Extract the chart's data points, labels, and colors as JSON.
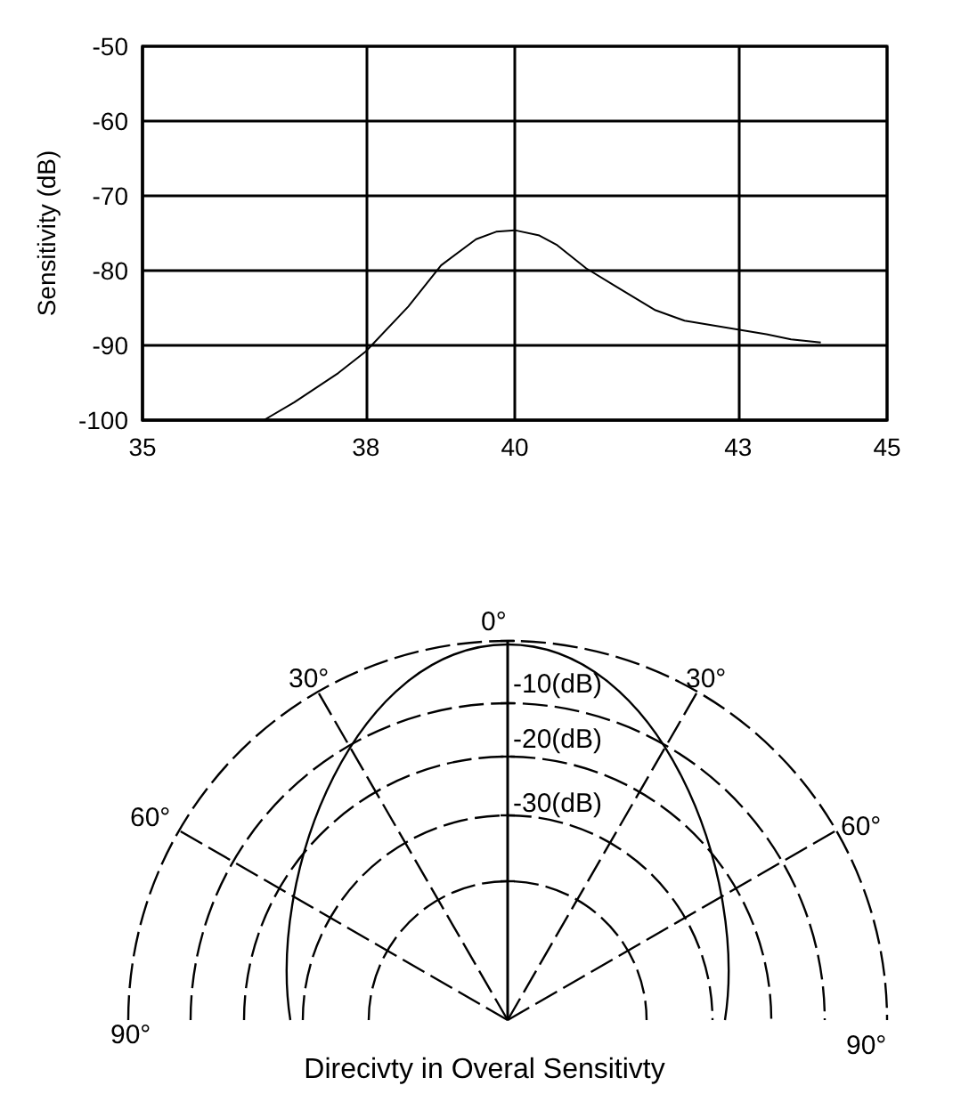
{
  "chart_data": [
    {
      "type": "line",
      "ylabel": "Sensitivity (dB)",
      "x": [
        36.63,
        37.04,
        37.63,
        38.0,
        38.57,
        39.01,
        39.48,
        39.75,
        40.0,
        40.33,
        40.57,
        40.96,
        41.34,
        41.89,
        42.28,
        43.0,
        43.38,
        43.71,
        44.11
      ],
      "series": [
        {
          "color": "#000000",
          "values": [
            -100,
            -97.6,
            -93.7,
            -90.8,
            -84.8,
            -79.3,
            -75.8,
            -74.8,
            -74.6,
            -75.3,
            -76.6,
            -79.7,
            -82.0,
            -85.3,
            -86.7,
            -87.9,
            -88.5,
            -89.2,
            -89.6
          ]
        }
      ],
      "xlim": [
        35,
        45
      ],
      "xticks": [
        35,
        38,
        40,
        43,
        45
      ],
      "ylim": [
        -100,
        -50
      ],
      "yticks": [
        -100,
        -90,
        -80,
        -70,
        -60,
        -50
      ],
      "grid": true,
      "marker": "none",
      "line_style": "solid"
    },
    {
      "type": "other",
      "title": "Direcivty in Overal Sensitivty",
      "annotations": [
        "0°",
        "30°",
        "30°",
        "60°",
        "60°",
        "90°",
        "90°",
        "-10(dB)",
        "-20(dB)",
        "-30(dB)"
      ]
    }
  ]
}
